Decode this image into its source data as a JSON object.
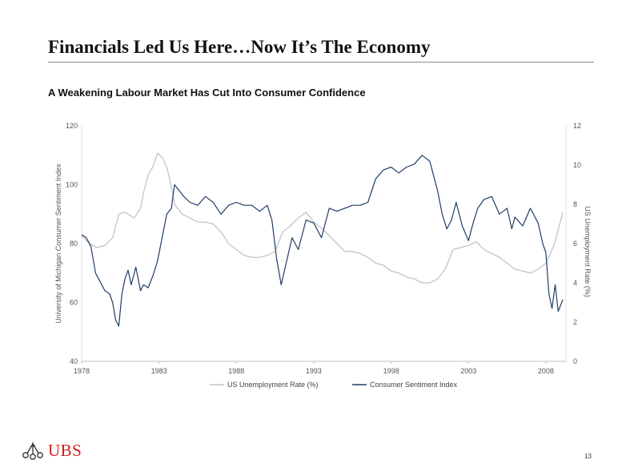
{
  "slide": {
    "title": "Financials Led Us Here…Now It’s The Economy",
    "subtitle": "A Weakening Labour Market Has Cut Into Consumer Confidence",
    "page_number": "13",
    "logo_text": "UBS",
    "logo_icon": "three-keys-icon"
  },
  "colors": {
    "unemployment": "#c4c4c4",
    "sentiment": "#1f3d66",
    "logo_red": "#d21a1a"
  },
  "chart_data": {
    "type": "line",
    "title": "",
    "x_ticks": [
      "1978",
      "1983",
      "1988",
      "1993",
      "1998",
      "2003",
      "2008"
    ],
    "xlim": [
      1978,
      2009.3
    ],
    "left_axis": {
      "label": "University of Michigan Consumer Sentiment Index",
      "range": [
        40,
        120
      ],
      "ticks": [
        "120",
        "100",
        "80",
        "60",
        "40"
      ]
    },
    "right_axis": {
      "label": "US Unemployment Rate (%)",
      "range": [
        0,
        12
      ],
      "ticks": [
        "12",
        "10",
        "8",
        "6",
        "4",
        "2",
        "0"
      ]
    },
    "legend_position": "bottom",
    "series": [
      {
        "name": "US Unemployment Rate (%)",
        "axis": "right",
        "color": "#c4c4c4",
        "x": [
          1978,
          1978.5,
          1979,
          1979.5,
          1980,
          1980.4,
          1980.8,
          1981,
          1981.4,
          1981.8,
          1982,
          1982.3,
          1982.6,
          1982.9,
          1983.2,
          1983.5,
          1983.8,
          1984,
          1984.5,
          1985,
          1985.5,
          1986,
          1986.5,
          1987,
          1987.5,
          1988,
          1988.5,
          1989,
          1989.5,
          1990,
          1990.5,
          1991,
          1991.5,
          1992,
          1992.5,
          1993,
          1993.5,
          1994,
          1994.5,
          1995,
          1995.5,
          1996,
          1996.5,
          1997,
          1997.5,
          1998,
          1998.5,
          1999,
          1999.5,
          2000,
          2000.5,
          2001,
          2001.5,
          2002,
          2002.5,
          2003,
          2003.5,
          2004,
          2004.5,
          2005,
          2005.5,
          2006,
          2006.5,
          2007,
          2007.5,
          2008,
          2008.3,
          2008.6,
          2008.9,
          2009.1
        ],
        "values": [
          6.4,
          6.0,
          5.8,
          5.9,
          6.3,
          7.5,
          7.6,
          7.5,
          7.3,
          7.8,
          8.6,
          9.5,
          9.9,
          10.6,
          10.4,
          9.9,
          8.9,
          8.0,
          7.5,
          7.3,
          7.1,
          7.1,
          7.0,
          6.6,
          6.0,
          5.7,
          5.4,
          5.3,
          5.3,
          5.4,
          5.6,
          6.6,
          6.9,
          7.3,
          7.6,
          7.1,
          6.8,
          6.4,
          6.0,
          5.6,
          5.6,
          5.5,
          5.3,
          5.0,
          4.9,
          4.6,
          4.5,
          4.3,
          4.2,
          4.0,
          4.0,
          4.2,
          4.7,
          5.7,
          5.8,
          5.9,
          6.1,
          5.7,
          5.5,
          5.3,
          5.0,
          4.7,
          4.6,
          4.5,
          4.7,
          5.0,
          5.5,
          6.1,
          7.0,
          7.6
        ]
      },
      {
        "name": "Consumer Sentiment Index",
        "axis": "left",
        "color": "#1f3d66",
        "x": [
          1978,
          1978.3,
          1978.6,
          1978.9,
          1979.2,
          1979.5,
          1979.8,
          1980,
          1980.2,
          1980.4,
          1980.6,
          1980.8,
          1981,
          1981.2,
          1981.5,
          1981.8,
          1982,
          1982.3,
          1982.6,
          1982.9,
          1983.2,
          1983.5,
          1983.8,
          1984,
          1984.3,
          1984.6,
          1985,
          1985.5,
          1986,
          1986.5,
          1987,
          1987.5,
          1988,
          1988.5,
          1989,
          1989.5,
          1990,
          1990.3,
          1990.6,
          1990.9,
          1991.2,
          1991.6,
          1992,
          1992.5,
          1993,
          1993.5,
          1994,
          1994.5,
          1995,
          1995.5,
          1996,
          1996.5,
          1997,
          1997.5,
          1998,
          1998.5,
          1999,
          1999.5,
          2000,
          2000.5,
          2001,
          2001.3,
          2001.6,
          2001.9,
          2002.2,
          2002.6,
          2003,
          2003.3,
          2003.6,
          2004,
          2004.5,
          2005,
          2005.5,
          2005.8,
          2006,
          2006.5,
          2007,
          2007.5,
          2007.8,
          2008,
          2008.2,
          2008.4,
          2008.6,
          2008.8,
          2009.1
        ],
        "values": [
          83,
          82,
          79,
          70,
          67,
          64,
          63,
          60,
          54,
          52,
          63,
          68,
          71,
          66,
          72,
          64,
          66,
          65,
          69,
          74,
          82,
          90,
          92,
          100,
          98,
          96,
          94,
          93,
          96,
          94,
          90,
          93,
          94,
          93,
          93,
          91,
          93,
          88,
          75,
          66,
          73,
          82,
          78,
          88,
          87,
          82,
          92,
          91,
          92,
          93,
          93,
          94,
          102,
          105,
          106,
          104,
          106,
          107,
          110,
          108,
          98,
          90,
          85,
          88,
          94,
          86,
          81,
          87,
          92,
          95,
          96,
          90,
          92,
          85,
          89,
          86,
          92,
          87,
          80,
          77,
          63,
          58,
          66,
          57,
          61
        ]
      }
    ]
  }
}
